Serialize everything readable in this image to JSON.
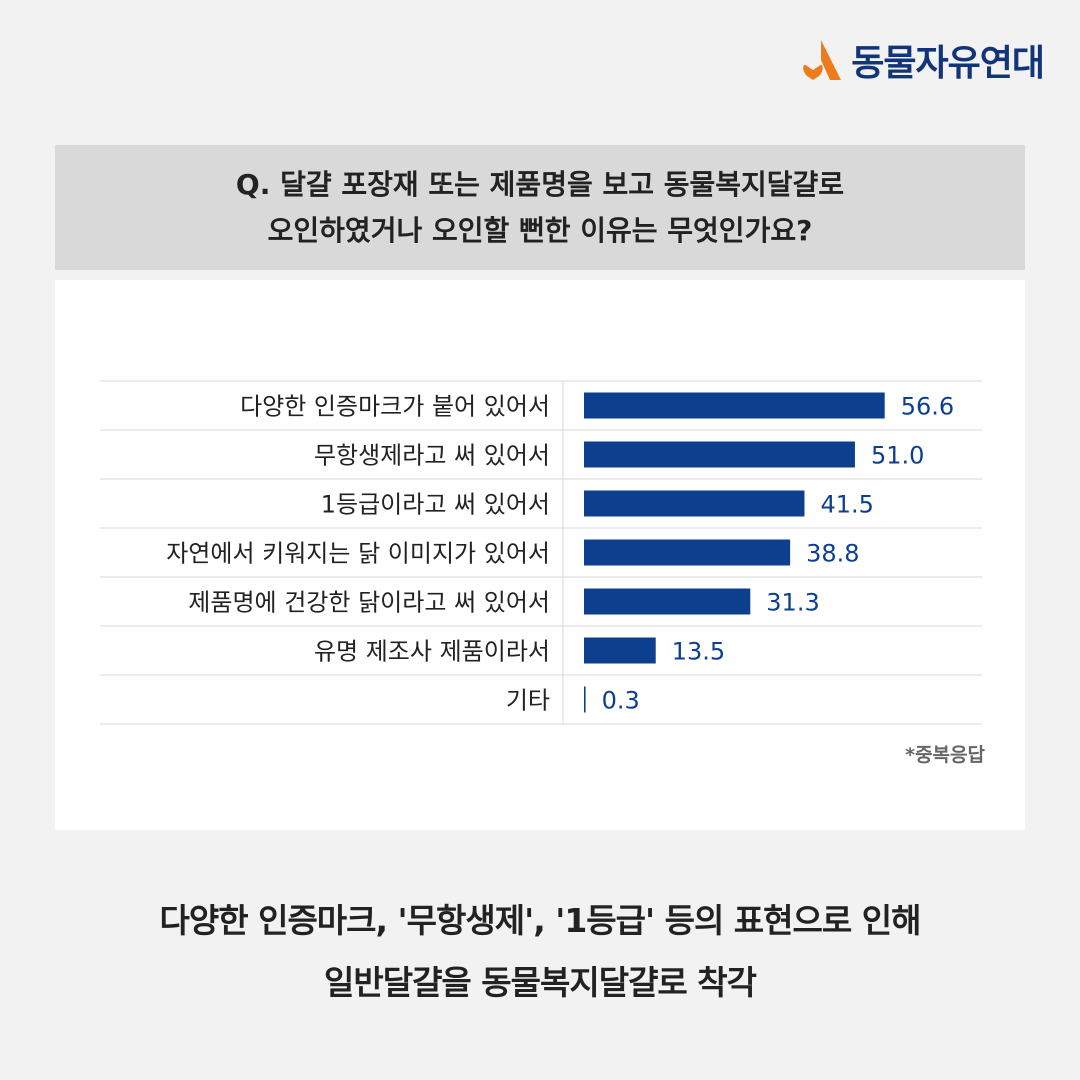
{
  "brand": {
    "name": "동물자유연대",
    "colors": {
      "mark_orange": "#ee7b1c",
      "text_navy": "#11347a"
    }
  },
  "question": {
    "line1": "Q. 달걀 포장재 또는 제품명을 보고 동물복지달걀로",
    "line2": "오인하였거나 오인할 뻔한 이유는 무엇인가요?"
  },
  "chart_data": {
    "type": "bar",
    "orientation": "horizontal",
    "categories": [
      "다양한 인증마크가 붙어 있어서",
      "무항생제라고 써 있어서",
      "1등급이라고 써 있어서",
      "자연에서 키워지는 닭 이미지가 있어서",
      "제품명에 건강한 닭이라고 써 있어서",
      "유명 제조사 제품이라서",
      "기타"
    ],
    "values": [
      56.6,
      51.0,
      41.5,
      38.8,
      31.3,
      13.5,
      0.3
    ],
    "value_labels": [
      "56.6",
      "51.0",
      "41.5",
      "38.8",
      "31.3",
      "13.5",
      "0.3"
    ],
    "xlim": [
      0,
      64
    ],
    "bar_color": "#0d3f8f",
    "label_color": "#0d3f8f",
    "grid": false,
    "note": "*중복응답"
  },
  "conclusion": {
    "line1": "다양한 인증마크, '무항생제', '1등급' 등의 표현으로 인해",
    "line2": "일반달걀을 동물복지달걀로 착각"
  }
}
